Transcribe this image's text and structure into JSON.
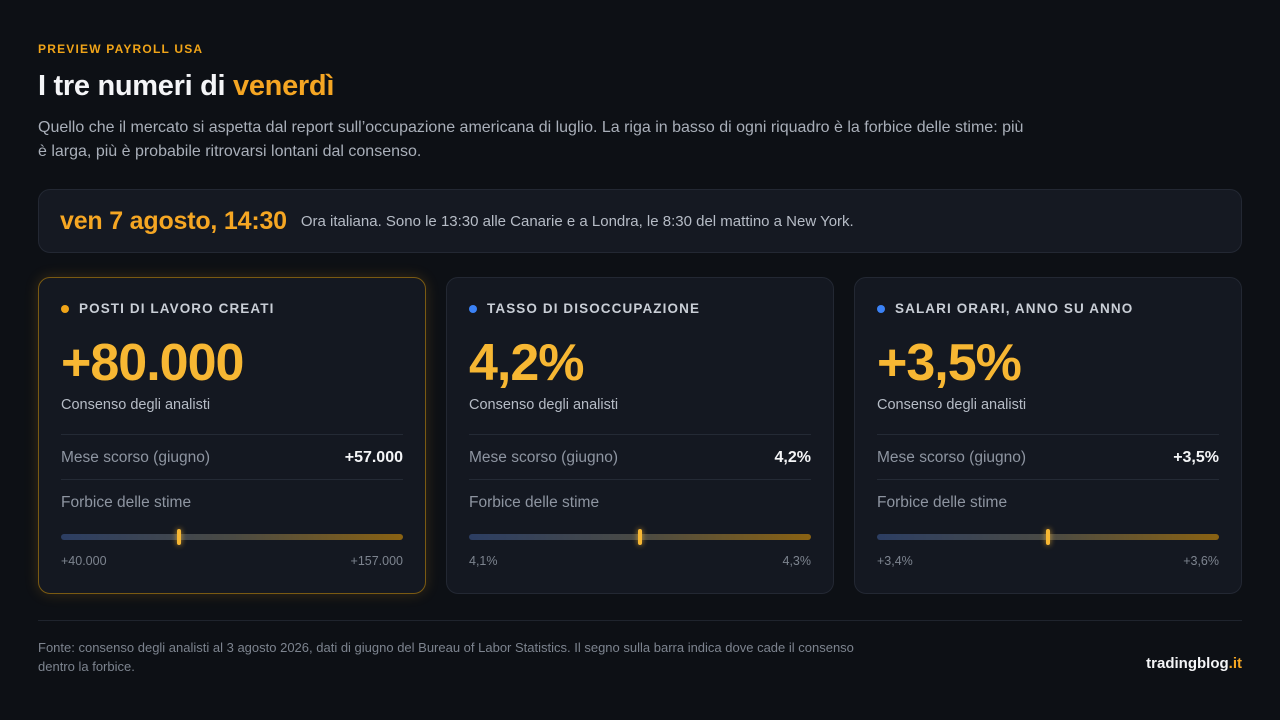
{
  "header": {
    "eyebrow": "PREVIEW PAYROLL USA",
    "title_prefix": "I tre numeri di ",
    "title_accent": "venerdì",
    "subtitle": "Quello che il mercato si aspetta dal report sull’occupazione americana di luglio. La riga in basso di ogni riquadro è la forbice delle stime: più è larga, più è probabile ritrovarsi lontani dal consenso."
  },
  "release": {
    "when": "ven 7 agosto, 14:30",
    "note": "Ora italiana. Sono le 13:30 alle Canarie e a Londra, le 8:30 del mattino a New York."
  },
  "colors": {
    "accent": "#f5a623",
    "dot_orange": "#f0a418",
    "dot_blue": "#3b82f6"
  },
  "cards": [
    {
      "label": "POSTI DI LAVORO CREATI",
      "dot_color": "#f0a418",
      "value": "+80.000",
      "caption": "Consenso degli analisti",
      "prev_label": "Mese scorso (giugno)",
      "prev_value": "+57.000",
      "range_label": "Forbice delle stime",
      "range_min": "+40.000",
      "range_max": "+157.000",
      "marker_fraction": 0.345
    },
    {
      "label": "TASSO DI DISOCCUPAZIONE",
      "dot_color": "#3b82f6",
      "value": "4,2%",
      "caption": "Consenso degli analisti",
      "prev_label": "Mese scorso (giugno)",
      "prev_value": "4,2%",
      "range_label": "Forbice delle stime",
      "range_min": "4,1%",
      "range_max": "4,3%",
      "marker_fraction": 0.5
    },
    {
      "label": "SALARI ORARI, ANNO SU ANNO",
      "dot_color": "#3b82f6",
      "value": "+3,5%",
      "caption": "Consenso degli analisti",
      "prev_label": "Mese scorso (giugno)",
      "prev_value": "+3,5%",
      "range_label": "Forbice delle stime",
      "range_min": "+3,4%",
      "range_max": "+3,6%",
      "marker_fraction": 0.5
    }
  ],
  "footer": {
    "source": "Fonte: consenso degli analisti al 3 agosto 2026, dati di giugno del Bureau of Labor Statistics. Il segno sulla barra indica dove cade il consenso dentro la forbice.",
    "brand_name": "tradingblog",
    "brand_tld": ".it"
  }
}
